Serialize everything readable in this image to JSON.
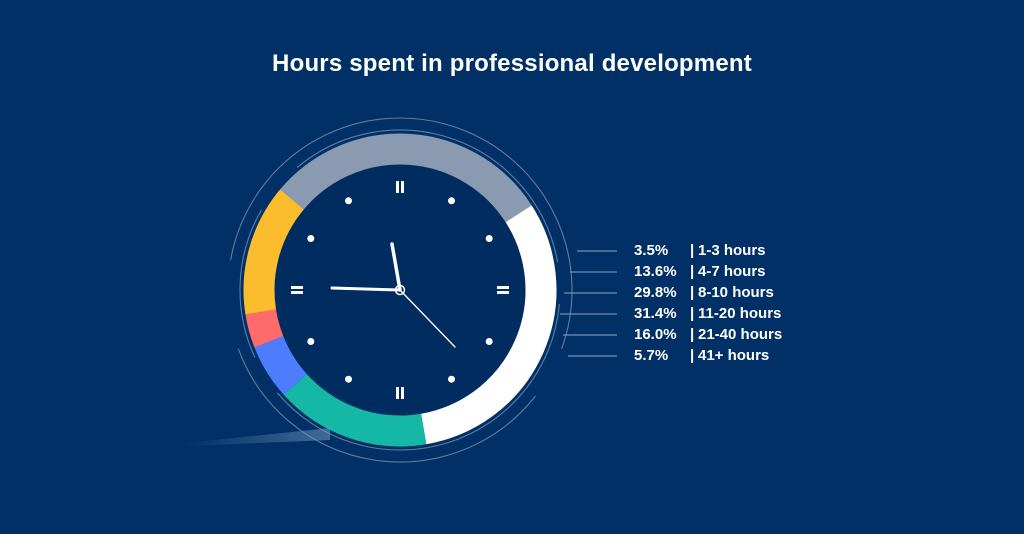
{
  "colors": {
    "background": "#003066",
    "ring_track": "#8a9ab0",
    "clock_face": "#002c5f",
    "hand": "#ffffff",
    "ticks": "#ffffff"
  },
  "chart_data": {
    "type": "pie",
    "title": "Hours spent in professional development",
    "categories": [
      "1-3 hours",
      "4-7 hours",
      "8-10 hours",
      "11-20 hours",
      "21-40 hours",
      "41+ hours"
    ],
    "values": [
      3.5,
      13.6,
      29.8,
      31.4,
      16.0,
      5.7
    ],
    "value_labels": [
      "3.5%",
      "13.6%",
      "29.8%",
      "31.4%",
      "16.0%",
      "5.7%"
    ],
    "series_colors": [
      "#ff6b6b",
      "#fbbc2d",
      "#8a9ab0",
      "#ffffff",
      "#15b8a6",
      "#4d7cff"
    ],
    "legend_position": "right"
  }
}
